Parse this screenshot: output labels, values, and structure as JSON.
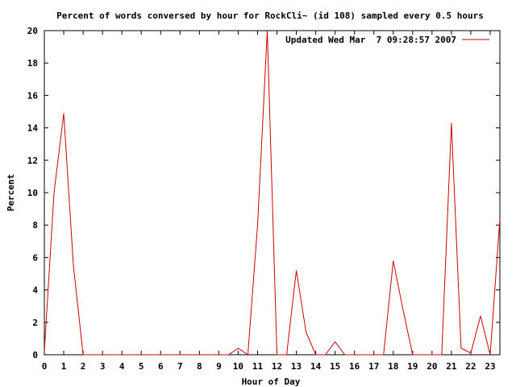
{
  "chart_data": {
    "type": "line",
    "title": "Percent of words conversed by hour for RockCli~ (id 108) sampled every 0.5 hours",
    "xlabel": "Hour of Day",
    "ylabel": "Percent",
    "xlim": [
      0,
      23.5
    ],
    "ylim": [
      0,
      20
    ],
    "x_ticks": [
      0,
      1,
      2,
      3,
      4,
      5,
      6,
      7,
      8,
      9,
      10,
      11,
      12,
      13,
      14,
      15,
      16,
      17,
      18,
      19,
      20,
      21,
      22,
      23
    ],
    "y_ticks": [
      0,
      2,
      4,
      6,
      8,
      10,
      12,
      14,
      16,
      18,
      20
    ],
    "grid": false,
    "legend_position": "top-right",
    "series_color": "#cc0000",
    "series": [
      {
        "name": "Updated Wed Mar  7 09:28:57 2007",
        "x": [
          0,
          0.5,
          1,
          1.5,
          2,
          2.5,
          3,
          3.5,
          4,
          4.5,
          5,
          5.5,
          6,
          6.5,
          7,
          7.5,
          8,
          8.5,
          9,
          9.5,
          10,
          10.5,
          11,
          11.5,
          12,
          12.5,
          13,
          13.5,
          14,
          14.5,
          15,
          15.5,
          16,
          16.5,
          17,
          17.5,
          18,
          18.5,
          19,
          19.5,
          20,
          20.5,
          21,
          21.5,
          22,
          22.5,
          23,
          23.5
        ],
        "values": [
          0.2,
          10.0,
          14.9,
          5.5,
          0,
          0,
          0,
          0,
          0,
          0,
          0,
          0,
          0,
          0,
          0,
          0,
          0,
          0,
          0,
          0,
          0.4,
          0,
          8.0,
          20.0,
          0,
          0,
          5.2,
          1.4,
          0,
          0,
          0.8,
          0,
          0,
          0,
          0,
          0,
          5.8,
          2.8,
          0,
          0,
          0,
          0,
          14.3,
          0.4,
          0.1,
          2.4,
          0,
          8.4
        ]
      }
    ]
  }
}
